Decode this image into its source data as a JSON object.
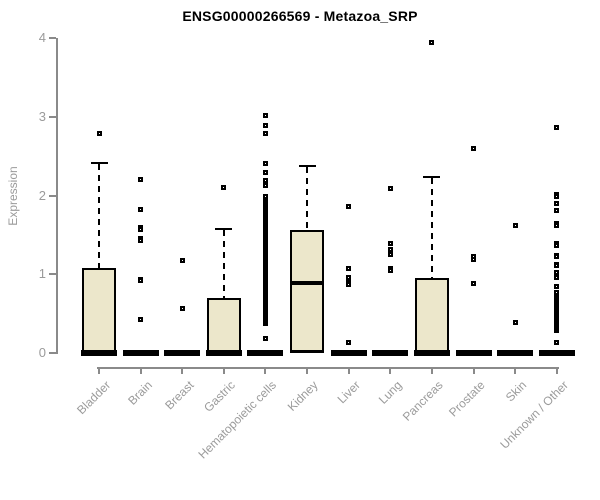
{
  "chart_data": {
    "type": "boxplot",
    "title": "ENSG00000266569 - Metazoa_SRP",
    "ylabel": "Expression",
    "xlabel": "",
    "ylim": [
      0,
      4
    ],
    "yticks": [
      0,
      1,
      2,
      3,
      4
    ],
    "grid": false,
    "legend": false,
    "categories": [
      "Bladder",
      "Brain",
      "Breast",
      "Gastric",
      "Hematopoietic cells",
      "Kidney",
      "Liver",
      "Lung",
      "Pancreas",
      "Prostate",
      "Skin",
      "Unknown / Other"
    ],
    "series": [
      {
        "name": "Bladder",
        "q1": 0,
        "median": 0,
        "q3": 1.08,
        "whisker_low": 0,
        "whisker_high": 2.43,
        "outliers": [
          2.79
        ]
      },
      {
        "name": "Brain",
        "q1": 0,
        "median": 0,
        "q3": 0,
        "whisker_low": 0,
        "whisker_high": 0,
        "outliers": [
          2.2,
          1.82,
          1.6,
          1.57,
          1.45,
          1.43,
          0.94,
          0.92,
          0.43
        ]
      },
      {
        "name": "Breast",
        "q1": 0,
        "median": 0,
        "q3": 0,
        "whisker_low": 0,
        "whisker_high": 0,
        "outliers": [
          1.17,
          0.57
        ]
      },
      {
        "name": "Gastric",
        "q1": 0,
        "median": 0,
        "q3": 0.7,
        "whisker_low": 0,
        "whisker_high": 1.59,
        "outliers": [
          2.1
        ]
      },
      {
        "name": "Hematopoietic cells",
        "q1": 0,
        "median": 0,
        "q3": 0,
        "whisker_low": 0,
        "whisker_high": 0,
        "outliers": [
          3.02,
          2.89,
          2.79,
          2.41,
          2.29,
          2.19,
          2.13,
          0.19
        ],
        "outlier_band": {
          "from": 0.38,
          "to": 2.0,
          "step": 0.022
        }
      },
      {
        "name": "Kidney",
        "q1": 0,
        "median": 0.89,
        "q3": 1.56,
        "whisker_low": 0,
        "whisker_high": 2.39,
        "outliers": []
      },
      {
        "name": "Liver",
        "q1": 0,
        "median": 0,
        "q3": 0,
        "whisker_low": 0,
        "whisker_high": 0,
        "outliers": [
          1.86,
          1.07,
          0.96,
          0.9,
          0.87,
          0.13
        ]
      },
      {
        "name": "Lung",
        "q1": 0,
        "median": 0,
        "q3": 0,
        "whisker_low": 0,
        "whisker_high": 0,
        "outliers": [
          2.09,
          1.39,
          1.31,
          1.25,
          1.07,
          1.05
        ]
      },
      {
        "name": "Pancreas",
        "q1": 0,
        "median": 0,
        "q3": 0.95,
        "whisker_low": 0,
        "whisker_high": 2.25,
        "outliers": [
          3.94
        ]
      },
      {
        "name": "Prostate",
        "q1": 0,
        "median": 0,
        "q3": 0,
        "whisker_low": 0,
        "whisker_high": 0,
        "outliers": [
          2.6,
          1.22,
          1.19,
          0.88
        ]
      },
      {
        "name": "Skin",
        "q1": 0,
        "median": 0,
        "q3": 0,
        "whisker_low": 0,
        "whisker_high": 0,
        "outliers": [
          1.62,
          0.39
        ]
      },
      {
        "name": "Unknown / Other",
        "q1": 0,
        "median": 0,
        "q3": 0,
        "whisker_low": 0,
        "whisker_high": 0,
        "outliers": [
          2.87,
          2.01,
          1.99,
          1.9,
          1.81,
          1.64,
          1.62,
          1.39,
          1.37,
          1.24,
          1.22,
          1.13,
          1.11,
          1.02,
          0.96,
          0.85,
          0.13
        ],
        "outlier_band": {
          "from": 0.28,
          "to": 0.78,
          "step": 0.022
        }
      }
    ],
    "colors": {
      "box_fill": "#ece7cb",
      "box_border": "#000000",
      "median": "#000000",
      "axis": "#8a8a8a",
      "tick_label": "#9b9b9b",
      "title": "#000000",
      "background": "#ffffff"
    }
  }
}
